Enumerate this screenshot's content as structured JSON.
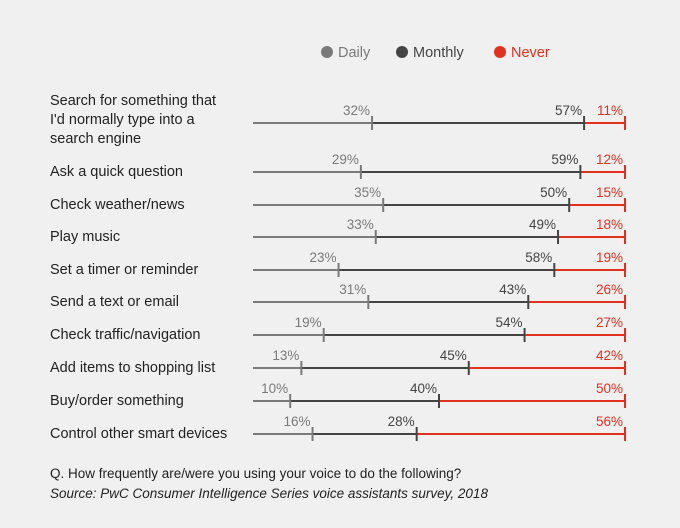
{
  "chart_data": {
    "type": "bar",
    "subtype": "stacked-horizontal-line",
    "legend": {
      "position": "top",
      "items": [
        "Daily",
        "Monthly",
        "Never"
      ]
    },
    "colors": {
      "Daily": "#7a7a7a",
      "Monthly": "#444444",
      "Never": "#e0301e"
    },
    "categories": [
      [
        "Search for something that",
        "I'd normally type into a",
        "search engine"
      ],
      [
        "Ask a quick question"
      ],
      [
        "Check weather/news"
      ],
      [
        "Play music"
      ],
      [
        "Set a timer or reminder"
      ],
      [
        "Send a text or email"
      ],
      [
        "Check traffic/navigation"
      ],
      [
        "Add items to shopping list"
      ],
      [
        "Buy/order something"
      ],
      [
        "Control other smart devices"
      ]
    ],
    "series": [
      {
        "name": "Daily",
        "values": [
          32,
          29,
          35,
          33,
          23,
          31,
          19,
          13,
          10,
          16
        ]
      },
      {
        "name": "Monthly",
        "values": [
          57,
          59,
          50,
          49,
          58,
          43,
          54,
          45,
          40,
          28
        ]
      },
      {
        "name": "Never",
        "values": [
          11,
          12,
          15,
          18,
          19,
          26,
          27,
          42,
          50,
          56
        ]
      }
    ],
    "unit": "%"
  },
  "footer": {
    "question": "Q. How frequently are/were you using your voice to do the following?",
    "source": "Source: PwC Consumer Intelligence Series voice assistants survey, 2018"
  }
}
